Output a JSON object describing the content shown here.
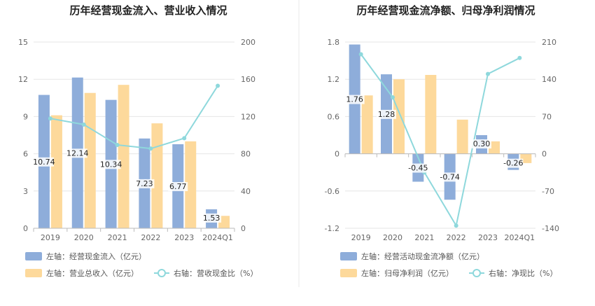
{
  "colors": {
    "bar_blue": "#8eadda",
    "bar_orange": "#fdd99b",
    "line_cyan": "#8ed8dc",
    "grid": "#e6e6e6",
    "axis": "#bbbbbb",
    "divider": "#e8e8e8"
  },
  "chart_data": [
    {
      "type": "bar",
      "title": "历年经营现金流入、营业收入情况",
      "categories": [
        "2019",
        "2020",
        "2021",
        "2022",
        "2023",
        "2024Q1"
      ],
      "y_left": {
        "min": 0,
        "max": 15,
        "ticks": [
          "0",
          "3",
          "6",
          "9",
          "12",
          "15"
        ]
      },
      "y_right": {
        "min": 0,
        "max": 200,
        "ticks": [
          "0",
          "40",
          "80",
          "120",
          "160",
          "200"
        ]
      },
      "series": [
        {
          "name": "左轴：经营现金流入（亿元）",
          "axis": "left",
          "kind": "bar",
          "color": "#8eadda",
          "values": [
            10.74,
            12.14,
            10.34,
            7.23,
            6.77,
            1.53
          ],
          "labels": [
            "10.74",
            "12.14",
            "10.34",
            "7.23",
            "6.77",
            "1.53"
          ]
        },
        {
          "name": "左轴：营业总收入（亿元）",
          "axis": "left",
          "kind": "bar",
          "color": "#fdd99b",
          "values": [
            9.1,
            10.9,
            11.55,
            8.45,
            7.0,
            1.0
          ]
        },
        {
          "name": "右轴：营收现金比（%）",
          "axis": "right",
          "kind": "line",
          "color": "#8ed8dc",
          "values": [
            117.9,
            111.4,
            89.5,
            85.6,
            96.7,
            153.0
          ]
        }
      ],
      "legend": [
        "左轴：经营现金流入（亿元）",
        "左轴：营业总收入（亿元）",
        "右轴：营收现金比（%）"
      ],
      "legend_position": "bottom-left",
      "grid": true
    },
    {
      "type": "bar",
      "title": "历年经营现金流净额、归母净利润情况",
      "categories": [
        "2019",
        "2020",
        "2021",
        "2022",
        "2023",
        "2024Q1"
      ],
      "y_left": {
        "min": -1.2,
        "max": 1.8,
        "ticks": [
          "-1.2",
          "-0.6",
          "0",
          "0.6",
          "1.2",
          "1.8"
        ]
      },
      "y_right": {
        "min": -140,
        "max": 210,
        "ticks": [
          "-140",
          "-70",
          "0",
          "70",
          "140",
          "210"
        ]
      },
      "series": [
        {
          "name": "左轴：经营活动现金流净额（亿元）",
          "axis": "left",
          "kind": "bar",
          "color": "#8eadda",
          "values": [
            1.76,
            1.28,
            -0.45,
            -0.74,
            0.3,
            -0.26
          ],
          "labels": [
            "1.76",
            "1.28",
            "-0.45",
            "-0.74",
            "0.30",
            "-0.26"
          ]
        },
        {
          "name": "左轴：归母净利润（亿元）",
          "axis": "left",
          "kind": "bar",
          "color": "#fdd99b",
          "values": [
            0.94,
            1.2,
            1.27,
            0.55,
            0.2,
            -0.15
          ]
        },
        {
          "name": "右轴：净现比（%）",
          "axis": "right",
          "kind": "line",
          "color": "#8ed8dc",
          "values": [
            187,
            106,
            -35,
            -135,
            150,
            180
          ]
        }
      ],
      "legend": [
        "左轴：经营活动现金流净额（亿元）",
        "左轴：归母净利润（亿元）",
        "右轴：净现比（%）"
      ],
      "legend_position": "bottom-left",
      "grid": true
    }
  ]
}
